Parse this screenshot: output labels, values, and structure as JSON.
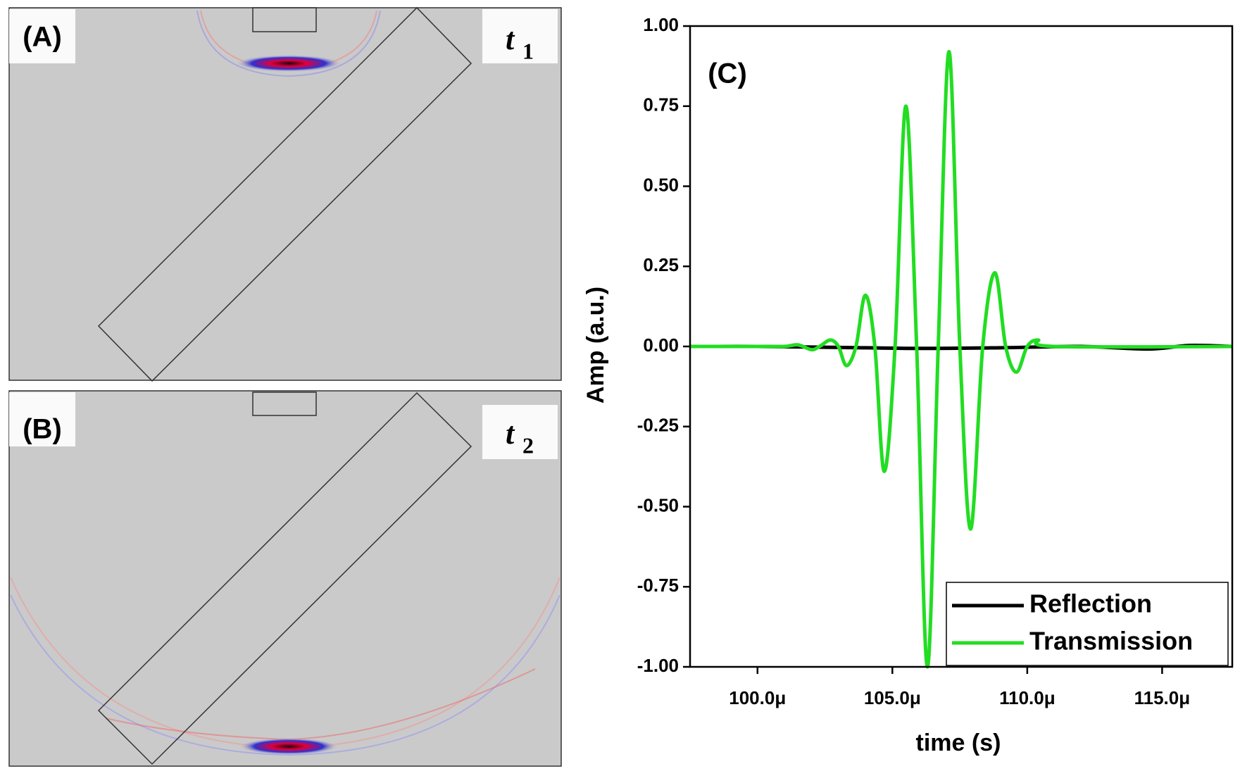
{
  "panels": [
    {
      "label": "(A)",
      "time": "t",
      "sub": "1"
    },
    {
      "label": "(B)",
      "time": "t",
      "sub": "2"
    }
  ],
  "chart_data": {
    "type": "line",
    "label": "(C)",
    "x_label": "time (s)",
    "y_label": "Amp (a.u.)",
    "xlim": [
      9.75e-05,
      0.0001176
    ],
    "xticks": [
      {
        "value": 0.0001,
        "label": "100.0μ"
      },
      {
        "value": 0.000105,
        "label": "105.0μ"
      },
      {
        "value": 0.00011,
        "label": "110.0μ"
      },
      {
        "value": 0.000115,
        "label": "115.0μ"
      }
    ],
    "ylim": [
      -1,
      1
    ],
    "yticks": [
      {
        "value": -1,
        "label": "-1.00"
      },
      {
        "value": -0.75,
        "label": "-0.75"
      },
      {
        "value": -0.5,
        "label": "-0.50"
      },
      {
        "value": -0.25,
        "label": "-0.25"
      },
      {
        "value": 0,
        "label": "0.00"
      },
      {
        "value": 0.25,
        "label": "0.25"
      },
      {
        "value": 0.5,
        "label": "0.50"
      },
      {
        "value": 0.75,
        "label": "0.75"
      },
      {
        "value": 1,
        "label": "1.00"
      }
    ],
    "legend": "lower right",
    "series": [
      {
        "name": "Reflection",
        "color": "#000000",
        "x": [
          9.75e-05,
          0.0001,
          0.000103,
          0.000106,
          0.000109,
          0.000112,
          0.0001145,
          0.000116,
          0.0001176
        ],
        "values": [
          0,
          0,
          -0.003,
          -0.006,
          -0.004,
          0,
          -0.008,
          0.003,
          0
        ]
      },
      {
        "name": "Transmission",
        "color": "#22dd22",
        "x": [
          9.75e-05,
          0.0001,
          0.000101,
          0.0001015,
          0.000102,
          0.0001023,
          0.0001027,
          0.000103,
          0.0001033,
          0.00010365,
          0.000104,
          0.00010435,
          0.0001047,
          0.0001051,
          0.0001055,
          0.0001059,
          0.0001063,
          0.0001067,
          0.0001071,
          0.0001075,
          0.0001079,
          0.00010835,
          0.0001088,
          0.0001092,
          0.0001096,
          0.00011,
          0.0001104,
          0.000111,
          0.0001176
        ],
        "values": [
          0,
          0,
          0,
          0.005,
          -0.01,
          0,
          0.02,
          0,
          -0.06,
          0,
          0.16,
          0,
          -0.39,
          0,
          0.75,
          0,
          -1.0,
          0,
          0.92,
          0,
          -0.57,
          0,
          0.23,
          0,
          -0.08,
          0,
          0.02,
          0,
          0
        ]
      }
    ]
  }
}
